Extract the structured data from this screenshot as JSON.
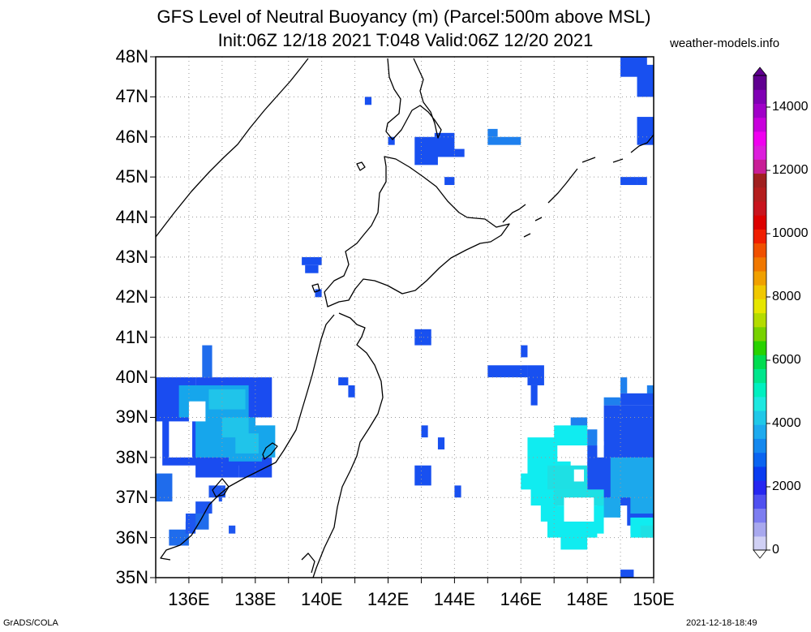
{
  "title": {
    "line1": "GFS Level of Neutral Buoyancy (m) (Parcel:500m above MSL)",
    "line2": "Init:06Z 12/18 2021 T:048 Valid:06Z 12/20 2021"
  },
  "credit": "weather-models.info",
  "footer": {
    "left": "GrADS/COLA",
    "right": "2021-12-18-18:49"
  },
  "map": {
    "lat_range": [
      35,
      48
    ],
    "lon_range": [
      135,
      150
    ],
    "lat_labels": [
      "48N",
      "47N",
      "46N",
      "45N",
      "44N",
      "43N",
      "42N",
      "41N",
      "40N",
      "39N",
      "38N",
      "37N",
      "36N",
      "35N"
    ],
    "lon_labels": [
      "136E",
      "138E",
      "140E",
      "142E",
      "144E",
      "146E",
      "148E",
      "150E"
    ]
  },
  "colorbar": {
    "labels": [
      "14000",
      "12000",
      "10000",
      "8000",
      "6000",
      "4000",
      "2000",
      "0"
    ],
    "colors": [
      "#d0d0f4",
      "#a8a8ee",
      "#7d7df0",
      "#5050f0",
      "#2626f0",
      "#0a3cf0",
      "#0a64f0",
      "#1488ee",
      "#1eaaee",
      "#20c8e8",
      "#1ee8e0",
      "#00f0c0",
      "#00e68c",
      "#00dc50",
      "#28d200",
      "#78d200",
      "#b4dc00",
      "#e6e600",
      "#f0c800",
      "#f0a000",
      "#f07800",
      "#f05000",
      "#f01e00",
      "#dc0000",
      "#c8141e",
      "#b41e1e",
      "#a02020",
      "#c81e96",
      "#dc1edc",
      "#f000f0",
      "#c800dc",
      "#a000c8",
      "#8000b4",
      "#600090"
    ]
  },
  "fields": [
    {
      "c": "#1a4cf0",
      "r": [
        [
          135,
          38.9,
          136.2,
          40.0
        ],
        [
          136.2,
          39.0,
          138.5,
          40.0
        ],
        [
          135.2,
          37.8,
          138.0,
          39.0
        ],
        [
          136.2,
          37.5,
          137.5,
          38.0
        ],
        [
          137.5,
          37.5,
          138.5,
          38.0
        ]
      ]
    },
    {
      "c": "#1f6cec",
      "r": [
        [
          135.0,
          36.9,
          135.5,
          37.6
        ],
        [
          136.4,
          40.0,
          136.7,
          40.8
        ],
        [
          136.0,
          36.2,
          136.6,
          36.6
        ],
        [
          135.4,
          35.8,
          136.0,
          36.2
        ]
      ]
    },
    {
      "c": "#16a6ec",
      "r": [
        [
          135.7,
          39.0,
          137.8,
          39.8
        ],
        [
          136.2,
          38.0,
          138.0,
          39.0
        ],
        [
          137.4,
          38.0,
          138.6,
          38.8
        ],
        [
          137.2,
          37.9,
          138.2,
          38.3
        ]
      ]
    },
    {
      "c": "#20c4ea",
      "r": [
        [
          136.6,
          39.2,
          137.7,
          39.7
        ],
        [
          137.4,
          38.1,
          138.1,
          38.6
        ],
        [
          137.0,
          38.5,
          137.8,
          39.0
        ]
      ]
    },
    {
      "c": "#1d56f0",
      "r": [
        [
          136.6,
          37.0,
          137.1,
          37.3
        ],
        [
          136.2,
          36.6,
          136.7,
          36.9
        ],
        [
          135.9,
          36.1,
          136.2,
          36.6
        ],
        [
          137.2,
          36.1,
          137.4,
          36.3
        ],
        [
          136.9,
          36.9,
          137.0,
          37.1
        ]
      ]
    },
    {
      "c": "#1850f0",
      "r": [
        [
          139.4,
          42.8,
          140.0,
          43.0
        ],
        [
          139.5,
          42.6,
          139.9,
          42.8
        ],
        [
          139.8,
          42.0,
          140.0,
          42.2
        ],
        [
          140.5,
          39.8,
          140.8,
          40.0
        ],
        [
          140.8,
          39.5,
          141.0,
          39.8
        ],
        [
          141.3,
          46.8,
          141.5,
          47.0
        ],
        [
          142.0,
          45.8,
          142.2,
          46.0
        ],
        [
          142.8,
          45.3,
          143.5,
          46.0
        ],
        [
          143.4,
          45.5,
          144.0,
          46.1
        ],
        [
          144.0,
          45.5,
          144.3,
          45.7
        ],
        [
          143.7,
          44.8,
          144.0,
          45.0
        ],
        [
          142.8,
          40.8,
          143.3,
          41.2
        ],
        [
          143.0,
          38.5,
          143.2,
          38.8
        ],
        [
          143.5,
          38.2,
          143.7,
          38.5
        ],
        [
          142.8,
          37.3,
          143.3,
          37.8
        ],
        [
          144.0,
          37.0,
          144.2,
          37.3
        ],
        [
          145.0,
          40.0,
          146.2,
          40.3
        ],
        [
          146.0,
          40.5,
          146.2,
          40.8
        ],
        [
          146.2,
          39.8,
          146.7,
          40.3
        ],
        [
          146.3,
          39.3,
          146.5,
          39.8
        ],
        [
          149.0,
          35.0,
          149.4,
          35.2
        ],
        [
          149.5,
          45.8,
          150,
          46.5
        ],
        [
          149.5,
          47.0,
          150,
          47.8
        ],
        [
          149.5,
          48.0,
          149.8,
          48.0
        ],
        [
          149.0,
          47.5,
          149.8,
          48.0
        ],
        [
          149.5,
          44.8,
          149.8,
          45.0
        ],
        [
          149.0,
          44.8,
          149.5,
          45.0
        ]
      ]
    },
    {
      "c": "#1e80ee",
      "r": [
        [
          145.0,
          45.8,
          146.0,
          46.0
        ],
        [
          145.0,
          46.0,
          145.3,
          46.2
        ],
        [
          147.5,
          38.7,
          148.0,
          39.0
        ],
        [
          148.0,
          38.3,
          148.3,
          38.7
        ],
        [
          148.5,
          39.3,
          149.0,
          39.5
        ],
        [
          149.0,
          39.6,
          149.2,
          40.0
        ],
        [
          149.8,
          39.5,
          150.0,
          39.8
        ]
      ]
    },
    {
      "c": "#1a50ee",
      "r": [
        [
          148.0,
          36.8,
          150.0,
          38.3
        ],
        [
          148.5,
          38.2,
          150.0,
          39.3
        ],
        [
          149.0,
          39.3,
          150.0,
          39.6
        ],
        [
          149.2,
          36.3,
          150.0,
          37.0
        ]
      ]
    },
    {
      "c": "#1ca8ec",
      "r": [
        [
          148.7,
          37.0,
          150.0,
          38.0
        ],
        [
          148.3,
          36.5,
          149.0,
          37.0
        ],
        [
          149.3,
          36.6,
          150.0,
          37.2
        ]
      ]
    },
    {
      "c": "#10ecf0",
      "r": [
        [
          146.2,
          37.5,
          147.5,
          38.5
        ],
        [
          146.0,
          37.2,
          147.2,
          37.6
        ],
        [
          146.3,
          36.8,
          148.0,
          37.5
        ],
        [
          146.8,
          36.0,
          148.5,
          36.8
        ],
        [
          147.2,
          35.7,
          148.0,
          36.1
        ],
        [
          147.0,
          38.0,
          148.0,
          38.8
        ],
        [
          146.6,
          36.4,
          147.1,
          36.9
        ],
        [
          149.3,
          36.0,
          150.0,
          36.5
        ]
      ]
    },
    {
      "c": "#1ee0e4",
      "r": [
        [
          146.8,
          37.2,
          148.0,
          37.8
        ],
        [
          147.0,
          36.8,
          148.5,
          37.2
        ],
        [
          149.6,
          36.0,
          150.0,
          36.3
        ]
      ]
    }
  ],
  "holes": [
    [
      135.4,
      38.0,
      136.1,
      38.9
    ],
    [
      136.0,
      38.9,
      136.5,
      39.4
    ],
    [
      135.0,
      36.4,
      135.9,
      36.8
    ],
    [
      135.0,
      35.0,
      135.4,
      35.8
    ],
    [
      147.1,
      37.9,
      148.0,
      38.3
    ],
    [
      147.3,
      36.4,
      148.2,
      37.0
    ],
    [
      148.3,
      35.5,
      149.3,
      36.1
    ],
    [
      148.5,
      36.0,
      148.9,
      36.5
    ],
    [
      148.3,
      38.0,
      148.5,
      38.4
    ],
    [
      147.6,
      37.4,
      147.9,
      37.7
    ]
  ]
}
